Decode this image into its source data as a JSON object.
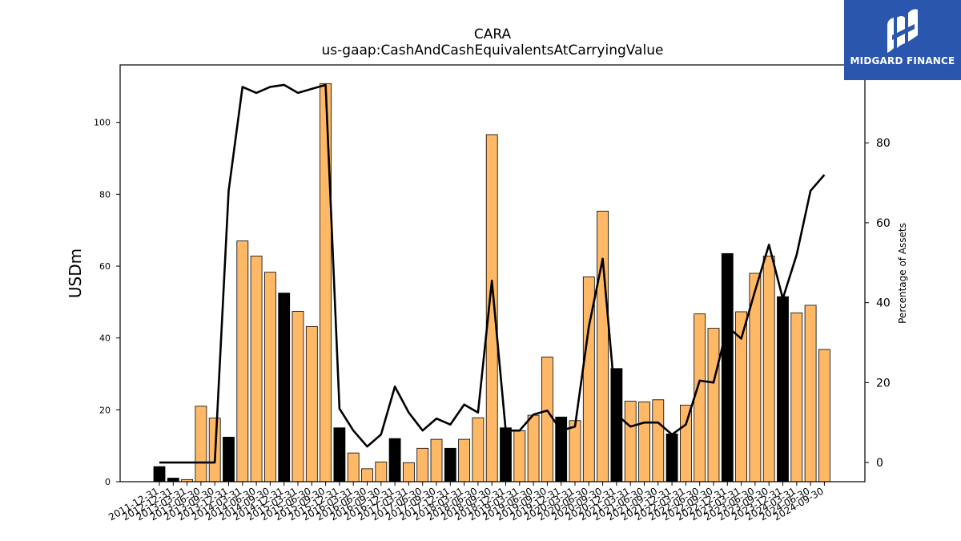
{
  "logo": {
    "text": "MIDGARD FINANCE",
    "icon": "mf-logo-icon"
  },
  "chart_data": {
    "type": "bar",
    "title": "CARA",
    "subtitle": "us-gaap:CashAndCashEquivalentsAtCarryingValue",
    "ylabel": "USDm",
    "y2label": "Percentage of Assets",
    "ylim": [
      0,
      116
    ],
    "y2lim": [
      -4.8,
      99.5
    ],
    "yticks": [
      0,
      20,
      40,
      60,
      80,
      100
    ],
    "y2ticks": [
      0,
      20,
      40,
      60,
      80
    ],
    "colors": {
      "bar": "#ffb866",
      "highlight": "#000000",
      "line": "#000000"
    },
    "categories": [
      "2011-12-31",
      "2012-12-31",
      "2013-03-31",
      "2013-06-30",
      "2013-09-30",
      "2013-12-31",
      "2014-03-31",
      "2014-06-30",
      "2014-09-30",
      "2014-12-31",
      "2015-03-31",
      "2015-06-30",
      "2015-09-30",
      "2015-12-31",
      "2016-03-31",
      "2016-06-30",
      "2016-09-30",
      "2016-12-31",
      "2017-03-31",
      "2017-06-30",
      "2017-09-30",
      "2017-12-31",
      "2018-03-31",
      "2018-06-30",
      "2018-09-30",
      "2018-12-31",
      "2019-03-31",
      "2019-06-30",
      "2019-09-30",
      "2019-12-31",
      "2020-03-31",
      "2020-06-30",
      "2020-09-30",
      "2020-12-31",
      "2021-03-31",
      "2021-06-30",
      "2021-09-30",
      "2021-12-31",
      "2022-03-31",
      "2022-06-30",
      "2022-09-30",
      "2022-12-31",
      "2023-03-31",
      "2023-06-30",
      "2023-09-30",
      "2023-12-31",
      "2024-03-31",
      "2024-06-30",
      "2024-09-30"
    ],
    "series": [
      {
        "type": "bar",
        "axis": "left",
        "values": [
          4.2,
          1.0,
          0.6,
          21.0,
          17.7,
          12.4,
          67.0,
          62.8,
          58.3,
          52.5,
          47.4,
          43.2,
          110.8,
          15.0,
          8.0,
          3.6,
          5.5,
          12.0,
          5.3,
          9.3,
          11.8,
          9.3,
          11.8,
          17.8,
          96.6,
          15.0,
          14.2,
          18.5,
          34.7,
          18.0,
          17.0,
          57.0,
          75.3,
          31.5,
          22.4,
          22.2,
          22.8,
          13.3,
          21.3,
          46.7,
          42.7,
          63.5,
          47.3,
          58.0,
          62.8,
          51.5,
          47.0,
          49.1,
          36.8
        ]
      },
      {
        "type": "line",
        "axis": "right",
        "values": [
          0,
          0,
          0,
          0,
          0,
          68,
          94,
          92.5,
          94,
          94.5,
          92.5,
          93.5,
          94.5,
          13.5,
          8,
          4,
          7,
          19,
          12.5,
          8,
          11,
          9.5,
          14.5,
          12.5,
          45.5,
          8,
          8,
          12,
          13,
          8,
          9,
          34,
          51,
          12,
          9,
          10,
          10,
          7,
          9.5,
          20.5,
          20,
          34,
          31,
          43,
          54.5,
          41,
          52,
          68,
          72
        ]
      }
    ],
    "highlight_indices": [
      0,
      1,
      5,
      9,
      13,
      17,
      21,
      25,
      29,
      33,
      37,
      41,
      45
    ]
  }
}
